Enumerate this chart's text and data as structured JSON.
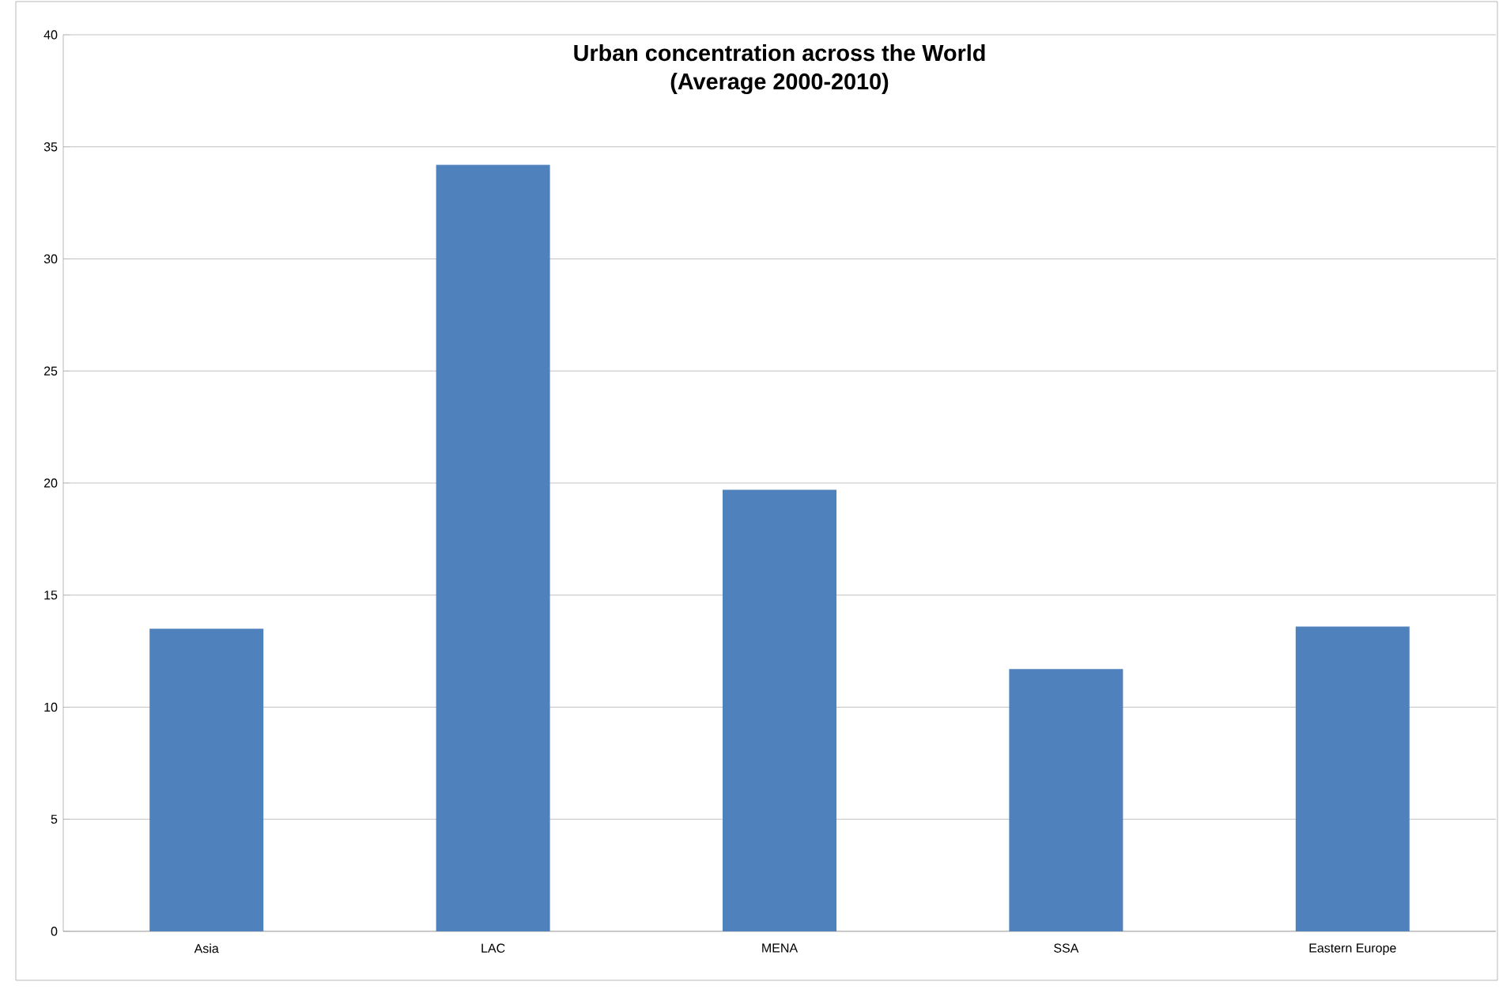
{
  "chart_data": {
    "type": "bar",
    "title": "Urban concentration  across the  World",
    "subtitle": "(Average 2000-2010)",
    "categories": [
      "Asia",
      "LAC",
      "MENA",
      "SSA",
      "Eastern Europe"
    ],
    "values": [
      13.5,
      34.2,
      19.7,
      11.7,
      13.6
    ],
    "color": "#4f81bd",
    "ylim": [
      0,
      40
    ],
    "yticks": [
      0,
      5,
      10,
      15,
      20,
      25,
      30,
      35,
      40
    ],
    "grid": "y"
  }
}
